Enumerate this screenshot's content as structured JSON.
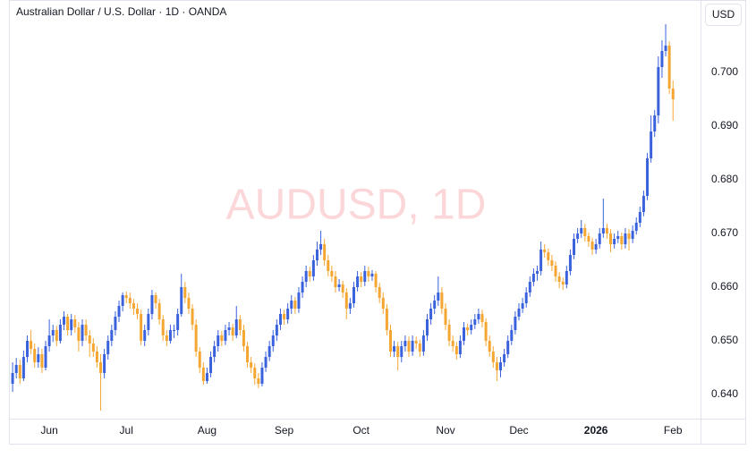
{
  "chart_data": {
    "type": "candlestick",
    "title": "Australian Dollar / U.S. Dollar · 1D · OANDA",
    "watermark": "AUDUSD, 1D",
    "currency": "USD",
    "up_color": "#3b62dd",
    "down_color": "#f5a631",
    "ylim": [
      0.6355,
      0.7135
    ],
    "yticks": [
      {
        "value": 0.64,
        "label": "0.640"
      },
      {
        "value": 0.65,
        "label": "0.650"
      },
      {
        "value": 0.66,
        "label": "0.660"
      },
      {
        "value": 0.67,
        "label": "0.670"
      },
      {
        "value": 0.68,
        "label": "0.680"
      },
      {
        "value": 0.69,
        "label": "0.690"
      },
      {
        "value": 0.7,
        "label": "0.700"
      }
    ],
    "xlim": [
      -1,
      187.5
    ],
    "xticks": [
      {
        "value": 10,
        "label": "Jun"
      },
      {
        "value": 31,
        "label": "Jul"
      },
      {
        "value": 53,
        "label": "Aug"
      },
      {
        "value": 74,
        "label": "Sep"
      },
      {
        "value": 95,
        "label": "Oct"
      },
      {
        "value": 118,
        "label": "Nov"
      },
      {
        "value": 138,
        "label": "Dec"
      },
      {
        "value": 159,
        "label": "2026"
      },
      {
        "value": 180,
        "label": "Feb"
      }
    ],
    "ohlc": [
      [
        0.642,
        0.646,
        0.6405,
        0.644
      ],
      [
        0.644,
        0.6468,
        0.643,
        0.6455
      ],
      [
        0.6455,
        0.6465,
        0.642,
        0.643
      ],
      [
        0.643,
        0.6482,
        0.6425,
        0.647
      ],
      [
        0.647,
        0.651,
        0.646,
        0.65
      ],
      [
        0.65,
        0.652,
        0.6475,
        0.6485
      ],
      [
        0.6485,
        0.6495,
        0.645,
        0.646
      ],
      [
        0.646,
        0.6488,
        0.645,
        0.6475
      ],
      [
        0.6475,
        0.6485,
        0.644,
        0.645
      ],
      [
        0.645,
        0.65,
        0.6445,
        0.649
      ],
      [
        0.649,
        0.654,
        0.648,
        0.651
      ],
      [
        0.651,
        0.653,
        0.6498,
        0.652
      ],
      [
        0.652,
        0.6528,
        0.649,
        0.65
      ],
      [
        0.65,
        0.654,
        0.6495,
        0.653
      ],
      [
        0.653,
        0.6555,
        0.652,
        0.6545
      ],
      [
        0.6545,
        0.655,
        0.651,
        0.652
      ],
      [
        0.652,
        0.655,
        0.651,
        0.654
      ],
      [
        0.654,
        0.6548,
        0.6515,
        0.6525
      ],
      [
        0.6525,
        0.6535,
        0.648,
        0.65
      ],
      [
        0.65,
        0.654,
        0.649,
        0.653
      ],
      [
        0.653,
        0.654,
        0.65,
        0.651
      ],
      [
        0.651,
        0.652,
        0.647,
        0.6495
      ],
      [
        0.6495,
        0.6505,
        0.647,
        0.648
      ],
      [
        0.648,
        0.649,
        0.645,
        0.646
      ],
      [
        0.646,
        0.6475,
        0.637,
        0.644
      ],
      [
        0.644,
        0.6485,
        0.643,
        0.6475
      ],
      [
        0.6475,
        0.651,
        0.6465,
        0.65
      ],
      [
        0.65,
        0.653,
        0.649,
        0.652
      ],
      [
        0.652,
        0.6555,
        0.651,
        0.6545
      ],
      [
        0.6545,
        0.6575,
        0.6535,
        0.6565
      ],
      [
        0.6565,
        0.659,
        0.6555,
        0.6585
      ],
      [
        0.6585,
        0.6592,
        0.657,
        0.658
      ],
      [
        0.658,
        0.659,
        0.656,
        0.657
      ],
      [
        0.657,
        0.6578,
        0.6548,
        0.656
      ],
      [
        0.656,
        0.657,
        0.654,
        0.655
      ],
      [
        0.655,
        0.6558,
        0.6492,
        0.65
      ],
      [
        0.65,
        0.653,
        0.649,
        0.652
      ],
      [
        0.652,
        0.656,
        0.651,
        0.655
      ],
      [
        0.655,
        0.6595,
        0.654,
        0.6585
      ],
      [
        0.6585,
        0.659,
        0.656,
        0.657
      ],
      [
        0.657,
        0.6578,
        0.653,
        0.654
      ],
      [
        0.654,
        0.6548,
        0.65,
        0.651
      ],
      [
        0.651,
        0.652,
        0.649,
        0.65
      ],
      [
        0.65,
        0.653,
        0.6495,
        0.652
      ],
      [
        0.652,
        0.653,
        0.6505,
        0.652
      ],
      [
        0.652,
        0.656,
        0.651,
        0.655
      ],
      [
        0.655,
        0.6625,
        0.6545,
        0.66
      ],
      [
        0.66,
        0.661,
        0.657,
        0.658
      ],
      [
        0.658,
        0.659,
        0.655,
        0.656
      ],
      [
        0.656,
        0.6568,
        0.652,
        0.653
      ],
      [
        0.653,
        0.654,
        0.647,
        0.648
      ],
      [
        0.648,
        0.6488,
        0.644,
        0.645
      ],
      [
        0.645,
        0.646,
        0.6418,
        0.6425
      ],
      [
        0.6425,
        0.645,
        0.642,
        0.644
      ],
      [
        0.644,
        0.648,
        0.6432,
        0.647
      ],
      [
        0.647,
        0.65,
        0.646,
        0.649
      ],
      [
        0.649,
        0.652,
        0.648,
        0.651
      ],
      [
        0.651,
        0.6518,
        0.649,
        0.65
      ],
      [
        0.65,
        0.653,
        0.6492,
        0.652
      ],
      [
        0.652,
        0.6535,
        0.651,
        0.6525
      ],
      [
        0.6525,
        0.6532,
        0.65,
        0.651
      ],
      [
        0.651,
        0.6565,
        0.6505,
        0.654
      ],
      [
        0.654,
        0.6548,
        0.651,
        0.652
      ],
      [
        0.652,
        0.653,
        0.648,
        0.649
      ],
      [
        0.649,
        0.6498,
        0.645,
        0.646
      ],
      [
        0.646,
        0.647,
        0.644,
        0.645
      ],
      [
        0.645,
        0.6458,
        0.6418,
        0.643
      ],
      [
        0.643,
        0.644,
        0.6412,
        0.642
      ],
      [
        0.642,
        0.646,
        0.6415,
        0.645
      ],
      [
        0.645,
        0.648,
        0.6442,
        0.647
      ],
      [
        0.647,
        0.65,
        0.6462,
        0.649
      ],
      [
        0.649,
        0.652,
        0.648,
        0.651
      ],
      [
        0.651,
        0.654,
        0.65,
        0.653
      ],
      [
        0.653,
        0.656,
        0.652,
        0.655
      ],
      [
        0.655,
        0.6558,
        0.653,
        0.654
      ],
      [
        0.654,
        0.657,
        0.6532,
        0.656
      ],
      [
        0.656,
        0.6585,
        0.655,
        0.6575
      ],
      [
        0.6575,
        0.6582,
        0.655,
        0.656
      ],
      [
        0.656,
        0.66,
        0.6552,
        0.659
      ],
      [
        0.659,
        0.662,
        0.658,
        0.661
      ],
      [
        0.661,
        0.664,
        0.66,
        0.663
      ],
      [
        0.663,
        0.6638,
        0.661,
        0.662
      ],
      [
        0.662,
        0.666,
        0.6612,
        0.665
      ],
      [
        0.665,
        0.6685,
        0.664,
        0.667
      ],
      [
        0.667,
        0.6705,
        0.666,
        0.668
      ],
      [
        0.668,
        0.669,
        0.664,
        0.665
      ],
      [
        0.665,
        0.666,
        0.662,
        0.663
      ],
      [
        0.663,
        0.664,
        0.661,
        0.662
      ],
      [
        0.662,
        0.663,
        0.659,
        0.66
      ],
      [
        0.66,
        0.6615,
        0.6592,
        0.6605
      ],
      [
        0.6605,
        0.6612,
        0.658,
        0.659
      ],
      [
        0.659,
        0.6598,
        0.654,
        0.656
      ],
      [
        0.656,
        0.658,
        0.655,
        0.657
      ],
      [
        0.657,
        0.661,
        0.6562,
        0.66
      ],
      [
        0.66,
        0.663,
        0.6592,
        0.662
      ],
      [
        0.662,
        0.6628,
        0.66,
        0.661
      ],
      [
        0.661,
        0.664,
        0.6602,
        0.663
      ],
      [
        0.663,
        0.6638,
        0.661,
        0.662
      ],
      [
        0.662,
        0.6632,
        0.6612,
        0.6625
      ],
      [
        0.6625,
        0.663,
        0.659,
        0.66
      ],
      [
        0.66,
        0.6608,
        0.657,
        0.658
      ],
      [
        0.658,
        0.659,
        0.655,
        0.656
      ],
      [
        0.656,
        0.6568,
        0.651,
        0.652
      ],
      [
        0.652,
        0.653,
        0.647,
        0.648
      ],
      [
        0.648,
        0.65,
        0.647,
        0.649
      ],
      [
        0.649,
        0.6498,
        0.6445,
        0.647
      ],
      [
        0.647,
        0.65,
        0.646,
        0.649
      ],
      [
        0.649,
        0.651,
        0.648,
        0.65
      ],
      [
        0.65,
        0.6508,
        0.647,
        0.648
      ],
      [
        0.648,
        0.651,
        0.6472,
        0.65
      ],
      [
        0.65,
        0.6508,
        0.6485,
        0.6495
      ],
      [
        0.6495,
        0.6502,
        0.647,
        0.648
      ],
      [
        0.648,
        0.652,
        0.6472,
        0.651
      ],
      [
        0.651,
        0.655,
        0.65,
        0.654
      ],
      [
        0.654,
        0.657,
        0.653,
        0.656
      ],
      [
        0.656,
        0.6585,
        0.655,
        0.6575
      ],
      [
        0.6575,
        0.662,
        0.6565,
        0.659
      ],
      [
        0.659,
        0.66,
        0.655,
        0.656
      ],
      [
        0.656,
        0.657,
        0.652,
        0.653
      ],
      [
        0.653,
        0.654,
        0.649,
        0.65
      ],
      [
        0.65,
        0.651,
        0.648,
        0.649
      ],
      [
        0.649,
        0.6498,
        0.6465,
        0.6475
      ],
      [
        0.6475,
        0.651,
        0.6468,
        0.65
      ],
      [
        0.65,
        0.6535,
        0.6492,
        0.6525
      ],
      [
        0.6525,
        0.6532,
        0.651,
        0.652
      ],
      [
        0.652,
        0.654,
        0.6512,
        0.653
      ],
      [
        0.653,
        0.655,
        0.6522,
        0.654
      ],
      [
        0.654,
        0.656,
        0.6532,
        0.655
      ],
      [
        0.655,
        0.6558,
        0.6525,
        0.6535
      ],
      [
        0.6535,
        0.6542,
        0.649,
        0.65
      ],
      [
        0.65,
        0.651,
        0.647,
        0.648
      ],
      [
        0.648,
        0.649,
        0.645,
        0.646
      ],
      [
        0.646,
        0.647,
        0.6425,
        0.6445
      ],
      [
        0.6445,
        0.647,
        0.6432,
        0.646
      ],
      [
        0.646,
        0.6485,
        0.6452,
        0.6475
      ],
      [
        0.6475,
        0.651,
        0.6468,
        0.65
      ],
      [
        0.65,
        0.653,
        0.6492,
        0.652
      ],
      [
        0.652,
        0.6555,
        0.6512,
        0.6545
      ],
      [
        0.6545,
        0.657,
        0.6538,
        0.656
      ],
      [
        0.656,
        0.658,
        0.6552,
        0.657
      ],
      [
        0.657,
        0.66,
        0.6562,
        0.659
      ],
      [
        0.659,
        0.662,
        0.6582,
        0.661
      ],
      [
        0.661,
        0.6635,
        0.6602,
        0.6625
      ],
      [
        0.6625,
        0.664,
        0.6612,
        0.663
      ],
      [
        0.663,
        0.6685,
        0.6622,
        0.667
      ],
      [
        0.667,
        0.668,
        0.6655,
        0.6665
      ],
      [
        0.6665,
        0.6672,
        0.664,
        0.665
      ],
      [
        0.665,
        0.666,
        0.663,
        0.664
      ],
      [
        0.664,
        0.6648,
        0.661,
        0.662
      ],
      [
        0.662,
        0.6628,
        0.6598,
        0.661
      ],
      [
        0.661,
        0.6618,
        0.6595,
        0.6605
      ],
      [
        0.6605,
        0.664,
        0.6598,
        0.663
      ],
      [
        0.663,
        0.667,
        0.6622,
        0.666
      ],
      [
        0.666,
        0.67,
        0.6652,
        0.669
      ],
      [
        0.669,
        0.671,
        0.6682,
        0.67
      ],
      [
        0.67,
        0.6725,
        0.6692,
        0.671
      ],
      [
        0.671,
        0.6718,
        0.6685,
        0.6695
      ],
      [
        0.6695,
        0.6702,
        0.6675,
        0.6685
      ],
      [
        0.6685,
        0.6692,
        0.666,
        0.667
      ],
      [
        0.667,
        0.669,
        0.6662,
        0.668
      ],
      [
        0.668,
        0.671,
        0.6672,
        0.67
      ],
      [
        0.67,
        0.6765,
        0.6692,
        0.671
      ],
      [
        0.671,
        0.6718,
        0.669,
        0.67
      ],
      [
        0.67,
        0.6708,
        0.6665,
        0.668
      ],
      [
        0.668,
        0.67,
        0.6672,
        0.669
      ],
      [
        0.669,
        0.6705,
        0.6682,
        0.6695
      ],
      [
        0.6695,
        0.6702,
        0.667,
        0.668
      ],
      [
        0.668,
        0.671,
        0.6672,
        0.67
      ],
      [
        0.67,
        0.6708,
        0.6668,
        0.669
      ],
      [
        0.669,
        0.6715,
        0.6682,
        0.6705
      ],
      [
        0.6705,
        0.673,
        0.6698,
        0.672
      ],
      [
        0.672,
        0.675,
        0.6712,
        0.674
      ],
      [
        0.674,
        0.678,
        0.6732,
        0.677
      ],
      [
        0.677,
        0.685,
        0.6762,
        0.684
      ],
      [
        0.684,
        0.692,
        0.6832,
        0.689
      ],
      [
        0.689,
        0.693,
        0.688,
        0.692
      ],
      [
        0.692,
        0.703,
        0.6905,
        0.701
      ],
      [
        0.701,
        0.706,
        0.699,
        0.704
      ],
      [
        0.704,
        0.709,
        0.703,
        0.705
      ],
      [
        0.705,
        0.7058,
        0.696,
        0.697
      ],
      [
        0.697,
        0.6985,
        0.691,
        0.695
      ]
    ]
  }
}
